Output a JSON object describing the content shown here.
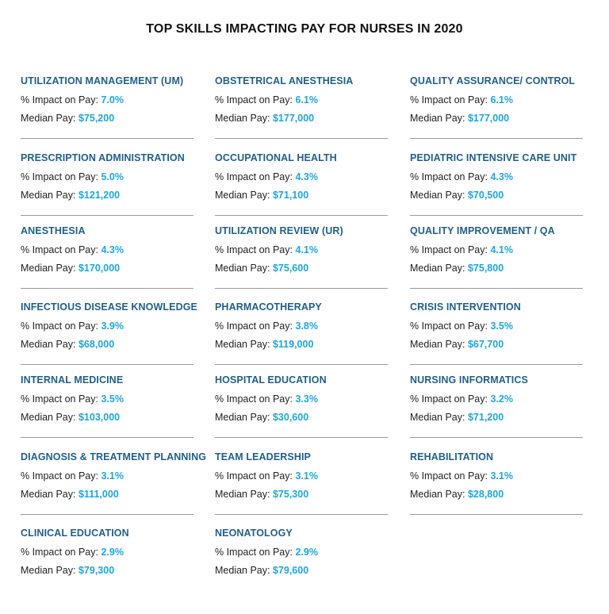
{
  "title": "TOP SKILLS IMPACTING PAY FOR NURSES IN 2020",
  "impact_label": "% Impact on Pay:",
  "pay_label": "Median Pay:",
  "colors": {
    "heading": "#1f5f8b",
    "value": "#1aa7e3",
    "text": "#222222",
    "rule": "#9a9a9a"
  },
  "skills": [
    {
      "name": "UTILIZATION MANAGEMENT (UM)",
      "impact": "7.0%",
      "pay": "$75,200"
    },
    {
      "name": "OBSTETRICAL ANESTHESIA",
      "impact": "6.1%",
      "pay": "$177,000"
    },
    {
      "name": "QUALITY ASSURANCE/ CONTROL",
      "impact": "6.1%",
      "pay": "$177,000"
    },
    {
      "name": "PRESCRIPTION ADMINISTRATION",
      "impact": "5.0%",
      "pay": "$121,200"
    },
    {
      "name": "OCCUPATIONAL HEALTH",
      "impact": "4.3%",
      "pay": "$71,100"
    },
    {
      "name": "PEDIATRIC INTENSIVE CARE UNIT",
      "impact": "4.3%",
      "pay": "$70,500"
    },
    {
      "name": "ANESTHESIA",
      "impact": "4.3%",
      "pay": "$170,000"
    },
    {
      "name": "UTILIZATION REVIEW (UR)",
      "impact": "4.1%",
      "pay": "$75,600"
    },
    {
      "name": "QUALITY IMPROVEMENT / QA",
      "impact": "4.1%",
      "pay": "$75,800"
    },
    {
      "name": "INFECTIOUS DISEASE KNOWLEDGE",
      "impact": "3.9%",
      "pay": "$68,000"
    },
    {
      "name": "PHARMACOTHERAPY",
      "impact": "3.8%",
      "pay": "$119,000"
    },
    {
      "name": "CRISIS INTERVENTION",
      "impact": "3.5%",
      "pay": "$67,700"
    },
    {
      "name": "INTERNAL MEDICINE",
      "impact": "3.5%",
      "pay": "$103,000"
    },
    {
      "name": "HOSPITAL EDUCATION",
      "impact": "3.3%",
      "pay": "$30,600"
    },
    {
      "name": "NURSING INFORMATICS",
      "impact": "3.2%",
      "pay": "$71,200"
    },
    {
      "name": "DIAGNOSIS & TREATMENT PLANNING",
      "impact": "3.1%",
      "pay": "$111,000"
    },
    {
      "name": "TEAM LEADERSHIP",
      "impact": "3.1%",
      "pay": "$75,300"
    },
    {
      "name": "REHABILITATION",
      "impact": "3.1%",
      "pay": "$28,800"
    },
    {
      "name": "CLINICAL EDUCATION",
      "impact": "2.9%",
      "pay": "$79,300"
    },
    {
      "name": "NEONATOLOGY",
      "impact": "2.9%",
      "pay": "$79,600"
    }
  ]
}
